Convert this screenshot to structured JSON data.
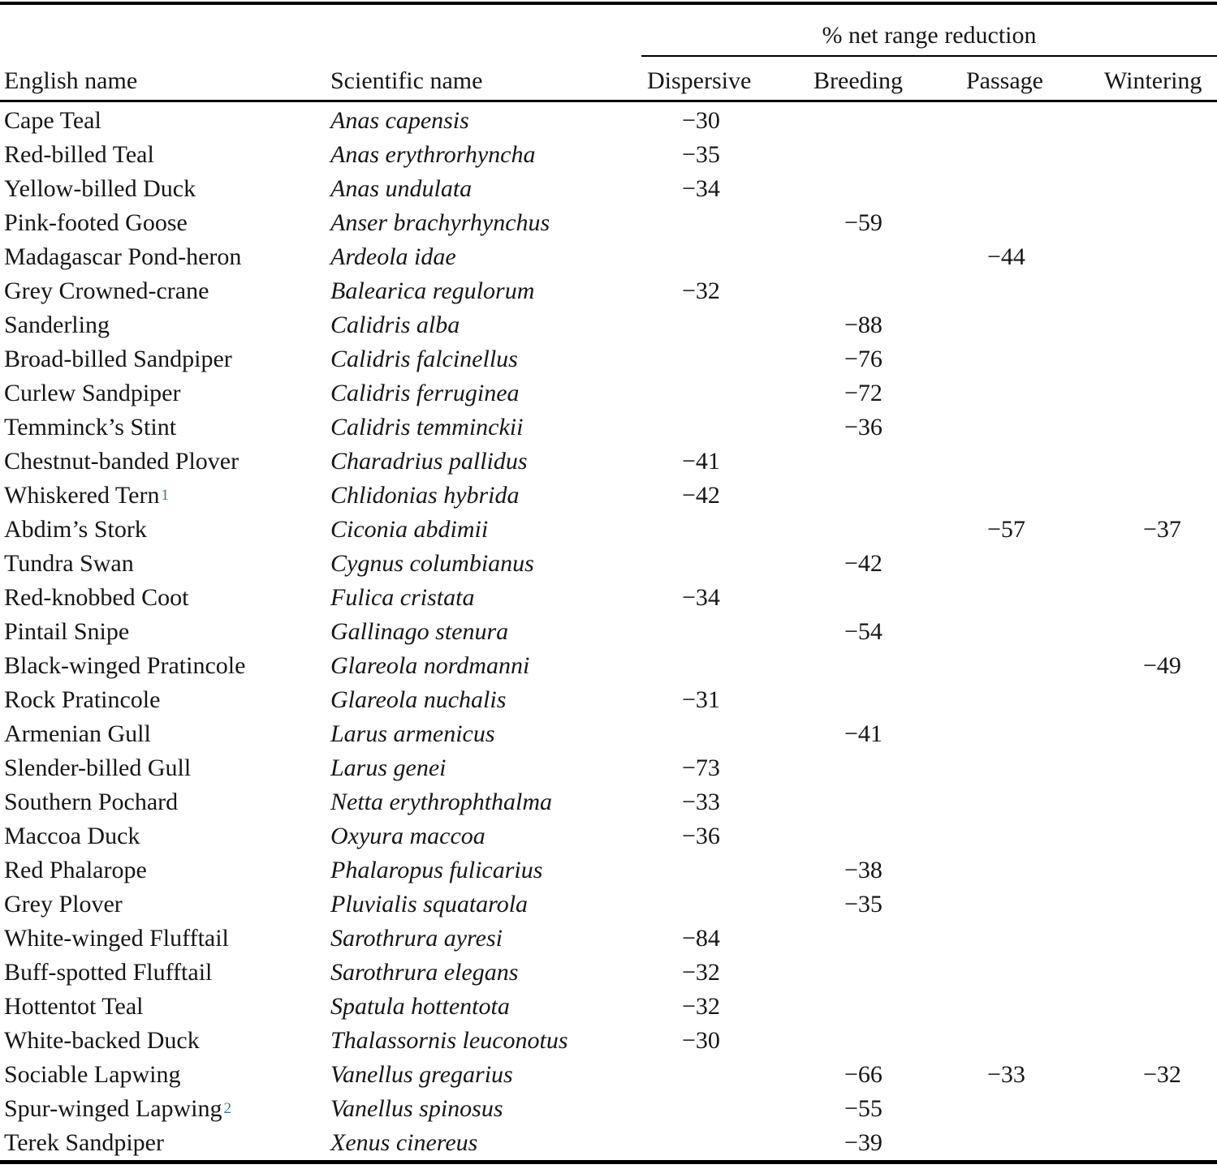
{
  "table": {
    "spanner_label": "% net range reduction",
    "columns": [
      "English name",
      "Scientific name",
      "Dispersive",
      "Breeding",
      "Passage",
      "Wintering"
    ],
    "footnote_color": "#2e7f80",
    "ink_color": "#161616",
    "rows": [
      {
        "english": "Cape Teal",
        "footnote": "",
        "scientific": "Anas capensis",
        "dispersive": "−30",
        "breeding": "",
        "passage": "",
        "wintering": ""
      },
      {
        "english": "Red-billed Teal",
        "footnote": "",
        "scientific": "Anas erythrorhyncha",
        "dispersive": "−35",
        "breeding": "",
        "passage": "",
        "wintering": ""
      },
      {
        "english": "Yellow-billed Duck",
        "footnote": "",
        "scientific": "Anas undulata",
        "dispersive": "−34",
        "breeding": "",
        "passage": "",
        "wintering": ""
      },
      {
        "english": "Pink-footed Goose",
        "footnote": "",
        "scientific": "Anser brachyrhynchus",
        "dispersive": "",
        "breeding": "−59",
        "passage": "",
        "wintering": ""
      },
      {
        "english": "Madagascar Pond-heron",
        "footnote": "",
        "scientific": "Ardeola idae",
        "dispersive": "",
        "breeding": "",
        "passage": "−44",
        "wintering": ""
      },
      {
        "english": "Grey Crowned-crane",
        "footnote": "",
        "scientific": "Balearica regulorum",
        "dispersive": "−32",
        "breeding": "",
        "passage": "",
        "wintering": ""
      },
      {
        "english": "Sanderling",
        "footnote": "",
        "scientific": "Calidris alba",
        "dispersive": "",
        "breeding": "−88",
        "passage": "",
        "wintering": ""
      },
      {
        "english": "Broad-billed Sandpiper",
        "footnote": "",
        "scientific": "Calidris falcinellus",
        "dispersive": "",
        "breeding": "−76",
        "passage": "",
        "wintering": ""
      },
      {
        "english": "Curlew Sandpiper",
        "footnote": "",
        "scientific": "Calidris ferruginea",
        "dispersive": "",
        "breeding": "−72",
        "passage": "",
        "wintering": ""
      },
      {
        "english": "Temminck’s Stint",
        "footnote": "",
        "scientific": "Calidris temminckii",
        "dispersive": "",
        "breeding": "−36",
        "passage": "",
        "wintering": ""
      },
      {
        "english": "Chestnut-banded Plover",
        "footnote": "",
        "scientific": "Charadrius pallidus",
        "dispersive": "−41",
        "breeding": "",
        "passage": "",
        "wintering": ""
      },
      {
        "english": "Whiskered Tern",
        "footnote": "1",
        "scientific": "Chlidonias hybrida",
        "dispersive": "−42",
        "breeding": "",
        "passage": "",
        "wintering": ""
      },
      {
        "english": "Abdim’s Stork",
        "footnote": "",
        "scientific": "Ciconia abdimii",
        "dispersive": "",
        "breeding": "",
        "passage": "−57",
        "wintering": "−37"
      },
      {
        "english": "Tundra Swan",
        "footnote": "",
        "scientific": "Cygnus columbianus",
        "dispersive": "",
        "breeding": "−42",
        "passage": "",
        "wintering": ""
      },
      {
        "english": "Red-knobbed Coot",
        "footnote": "",
        "scientific": "Fulica cristata",
        "dispersive": "−34",
        "breeding": "",
        "passage": "",
        "wintering": ""
      },
      {
        "english": "Pintail Snipe",
        "footnote": "",
        "scientific": "Gallinago stenura",
        "dispersive": "",
        "breeding": "−54",
        "passage": "",
        "wintering": ""
      },
      {
        "english": "Black-winged Pratincole",
        "footnote": "",
        "scientific": "Glareola nordmanni",
        "dispersive": "",
        "breeding": "",
        "passage": "",
        "wintering": "−49"
      },
      {
        "english": "Rock Pratincole",
        "footnote": "",
        "scientific": "Glareola nuchalis",
        "dispersive": "−31",
        "breeding": "",
        "passage": "",
        "wintering": ""
      },
      {
        "english": "Armenian Gull",
        "footnote": "",
        "scientific": "Larus armenicus",
        "dispersive": "",
        "breeding": "−41",
        "passage": "",
        "wintering": ""
      },
      {
        "english": "Slender-billed Gull",
        "footnote": "",
        "scientific": "Larus genei",
        "dispersive": "−73",
        "breeding": "",
        "passage": "",
        "wintering": ""
      },
      {
        "english": "Southern Pochard",
        "footnote": "",
        "scientific": "Netta erythrophthalma",
        "dispersive": "−33",
        "breeding": "",
        "passage": "",
        "wintering": ""
      },
      {
        "english": "Maccoa Duck",
        "footnote": "",
        "scientific": "Oxyura maccoa",
        "dispersive": "−36",
        "breeding": "",
        "passage": "",
        "wintering": ""
      },
      {
        "english": "Red Phalarope",
        "footnote": "",
        "scientific": "Phalaropus fulicarius",
        "dispersive": "",
        "breeding": "−38",
        "passage": "",
        "wintering": ""
      },
      {
        "english": "Grey Plover",
        "footnote": "",
        "scientific": "Pluvialis squatarola",
        "dispersive": "",
        "breeding": "−35",
        "passage": "",
        "wintering": ""
      },
      {
        "english": "White-winged Flufftail",
        "footnote": "",
        "scientific": "Sarothrura ayresi",
        "dispersive": "−84",
        "breeding": "",
        "passage": "",
        "wintering": ""
      },
      {
        "english": "Buff-spotted Flufftail",
        "footnote": "",
        "scientific": "Sarothrura elegans",
        "dispersive": "−32",
        "breeding": "",
        "passage": "",
        "wintering": ""
      },
      {
        "english": "Hottentot Teal",
        "footnote": "",
        "scientific": "Spatula hottentota",
        "dispersive": "−32",
        "breeding": "",
        "passage": "",
        "wintering": ""
      },
      {
        "english": "White-backed Duck",
        "footnote": "",
        "scientific": "Thalassornis leuconotus",
        "dispersive": "−30",
        "breeding": "",
        "passage": "",
        "wintering": ""
      },
      {
        "english": "Sociable Lapwing",
        "footnote": "",
        "scientific": "Vanellus gregarius",
        "dispersive": "",
        "breeding": "−66",
        "passage": "−33",
        "wintering": "−32"
      },
      {
        "english": "Spur-winged Lapwing",
        "footnote": "2",
        "scientific": "Vanellus spinosus",
        "dispersive": "",
        "breeding": "−55",
        "passage": "",
        "wintering": ""
      },
      {
        "english": "Terek Sandpiper",
        "footnote": "",
        "scientific": "Xenus cinereus",
        "dispersive": "",
        "breeding": "−39",
        "passage": "",
        "wintering": ""
      }
    ]
  }
}
